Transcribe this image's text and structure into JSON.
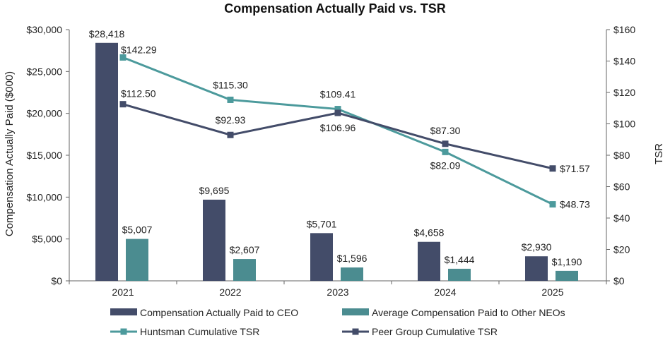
{
  "chart_data": {
    "type": "bar",
    "title": "Compensation Actually Paid vs. TSR",
    "categories": [
      "2021",
      "2022",
      "2023",
      "2024",
      "2025"
    ],
    "ylabel": "Compensation Actually Paid ($000)",
    "y2label": "TSR",
    "ylim": [
      0,
      30000
    ],
    "y2lim": [
      0,
      160
    ],
    "yticks": [
      "$0",
      "$5,000",
      "$10,000",
      "$15,000",
      "$20,000",
      "$25,000",
      "$30,000"
    ],
    "y2ticks": [
      "$0",
      "$20",
      "$40",
      "$60",
      "$80",
      "$100",
      "$120",
      "$140",
      "$160"
    ],
    "grid": false,
    "legend_position": "bottom",
    "bar_series": [
      {
        "name": "Compensation Actually Paid to CEO",
        "values": [
          28418,
          9695,
          5701,
          4658,
          2930
        ],
        "labels": [
          "$28,418",
          "$9,695",
          "$5,701",
          "$4,658",
          "$2,930"
        ],
        "color": "#434c69"
      },
      {
        "name": "Average Compensation Paid to Other NEOs",
        "values": [
          5007,
          2607,
          1596,
          1444,
          1190
        ],
        "labels": [
          "$5,007",
          "$2,607",
          "$1,596",
          "$1,444",
          "$1,190"
        ],
        "color": "#4b8c90"
      }
    ],
    "line_series": [
      {
        "name": "Huntsman Cumulative TSR",
        "axis": "right",
        "values": [
          142.29,
          115.3,
          109.41,
          82.09,
          48.73
        ],
        "labels": [
          "$142.29",
          "$115.30",
          "$109.41",
          "$82.09",
          "$48.73"
        ],
        "color": "#4c9a9c"
      },
      {
        "name": "Peer Group Cumulative TSR",
        "axis": "right",
        "values": [
          112.5,
          92.93,
          106.96,
          87.3,
          71.57
        ],
        "labels": [
          "$112.50",
          "$92.93",
          "$106.96",
          "$87.30",
          "$71.57"
        ],
        "color": "#434c69"
      }
    ]
  }
}
